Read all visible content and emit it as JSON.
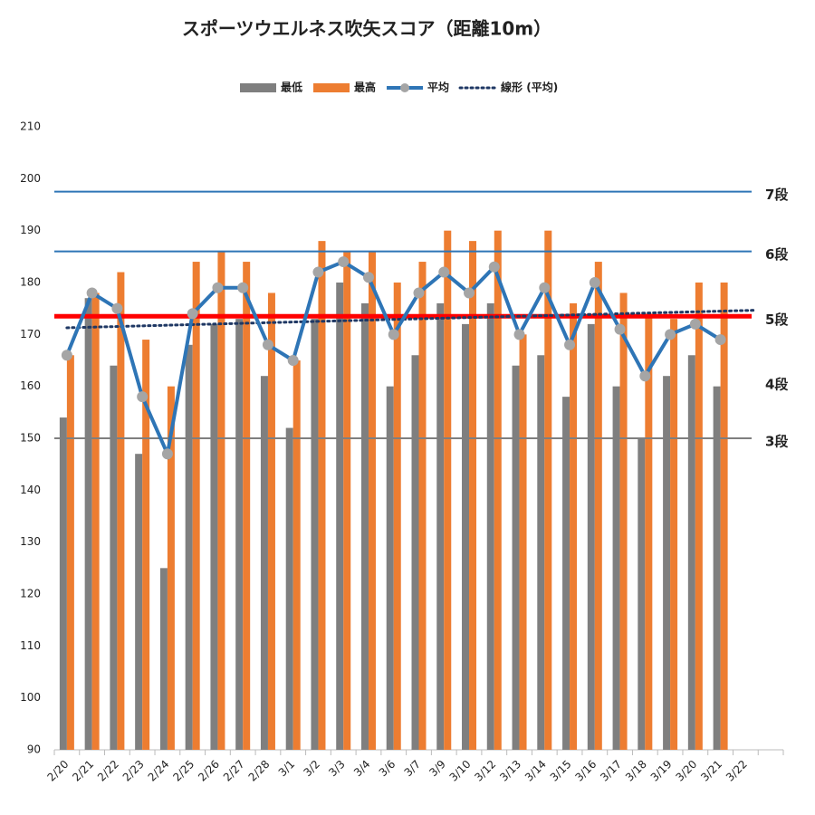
{
  "chart_data": {
    "type": "bar",
    "title": "スポーツウエルネス吹矢スコア（距離10m）",
    "categories": [
      "2/20",
      "2/21",
      "2/22",
      "2/23",
      "2/24",
      "2/25",
      "2/26",
      "2/27",
      "2/28",
      "3/1",
      "3/2",
      "3/3",
      "3/4",
      "3/6",
      "3/7",
      "3/9",
      "3/10",
      "3/12",
      "3/13",
      "3/14",
      "3/15",
      "3/16",
      "3/17",
      "3/18",
      "3/19",
      "3/20",
      "3/21",
      "3/22"
    ],
    "series": [
      {
        "name": "最低",
        "color": "#7f7f7f",
        "kind": "bar",
        "values": [
          154,
          177,
          164,
          147,
          125,
          168,
          172,
          173,
          162,
          152,
          173,
          180,
          176,
          160,
          166,
          176,
          172,
          176,
          164,
          166,
          158,
          172,
          160,
          150,
          162,
          166,
          160,
          null
        ]
      },
      {
        "name": "最高",
        "color": "#ed7d31",
        "kind": "bar",
        "values": [
          166,
          178,
          182,
          169,
          160,
          184,
          186,
          184,
          178,
          165,
          188,
          186,
          186,
          180,
          184,
          190,
          188,
          190,
          170,
          190,
          176,
          184,
          178,
          174,
          173,
          180,
          180,
          null
        ]
      },
      {
        "name": "平均",
        "color": "#2e75b6",
        "kind": "line",
        "values": [
          166,
          178,
          175,
          158,
          147,
          174,
          179,
          179,
          168,
          165,
          182,
          184,
          181,
          170,
          178,
          182,
          178,
          183,
          170,
          179,
          168,
          180,
          171,
          162,
          170,
          172,
          169,
          null
        ]
      },
      {
        "name": "線形 (平均)",
        "color": "#1f3864",
        "kind": "trend",
        "of": 2
      }
    ],
    "reference_lines": [
      {
        "label": "7段",
        "value": 197.5,
        "color": "#2e75b6",
        "width": 2,
        "label_color": "#222"
      },
      {
        "label": "6段",
        "value": 186,
        "color": "#2e75b6",
        "width": 2,
        "label_color": "#222"
      },
      {
        "label": "5段",
        "value": 173.5,
        "color": "#ff0000",
        "width": 5,
        "label_color": "#2e75b6"
      },
      {
        "label": "4段",
        "value": 161,
        "color": null,
        "width": 0,
        "label_color": "#222"
      },
      {
        "label": "3段",
        "value": 150,
        "color": "#7f7f7f",
        "width": 2,
        "label_color": "#222"
      }
    ],
    "ylim": [
      90,
      210
    ],
    "yticks": [
      90,
      100,
      110,
      120,
      130,
      140,
      150,
      160,
      170,
      180,
      190,
      200,
      210
    ]
  }
}
